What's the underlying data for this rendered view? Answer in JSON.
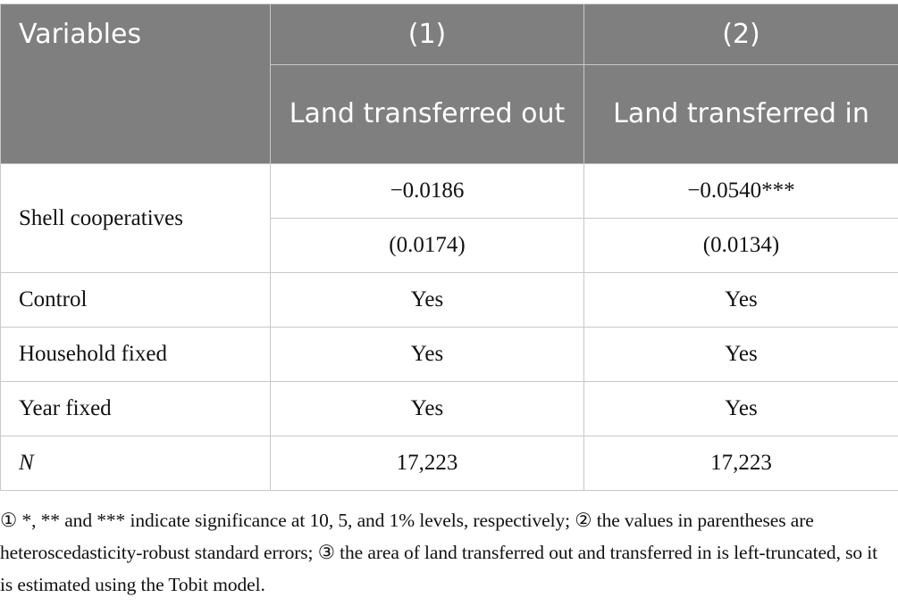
{
  "table": {
    "header": {
      "variables": "Variables",
      "col1_number": "(1)",
      "col2_number": "(2)",
      "col1_label": "Land transferred out",
      "col2_label": "Land transferred in"
    },
    "rows": [
      {
        "label": "Shell cooperatives",
        "col1": "−0.0186",
        "col2": "−0.0540***",
        "col1_se": "(0.0174)",
        "col2_se": "(0.0134)"
      },
      {
        "label": "Control",
        "col1": "Yes",
        "col2": "Yes"
      },
      {
        "label": "Household fixed",
        "col1": "Yes",
        "col2": "Yes"
      },
      {
        "label": "Year fixed",
        "col1": "Yes",
        "col2": "Yes"
      },
      {
        "label": "N",
        "col1": "17,223",
        "col2": "17,223"
      }
    ]
  },
  "footnote": "① *, ** and *** indicate significance at 10, 5, and 1% levels, respectively; ② the values in parentheses are heteroscedasticity-robust standard errors; ③ the area of land transferred out and transferred in is left-truncated, so it is estimated using the Tobit model.",
  "colors": {
    "header_bg": "#7f7f7f",
    "border": "#c8c8c8"
  }
}
